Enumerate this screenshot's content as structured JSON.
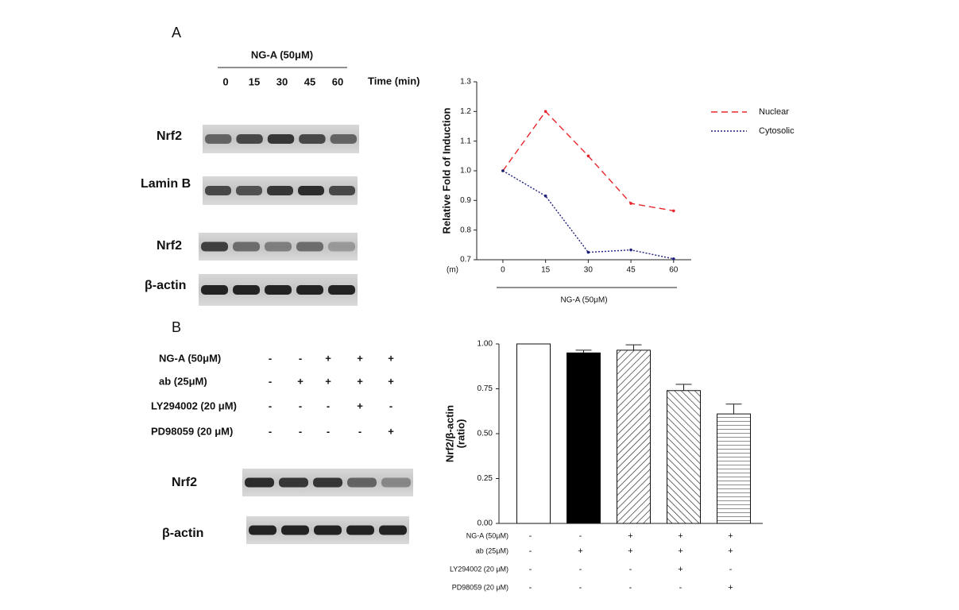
{
  "panel_a": {
    "label": "A",
    "treatment": "NG-A (50μM)",
    "time_points": [
      0,
      15,
      30,
      45,
      60
    ],
    "time_label": "Time (min)",
    "blot_labels": [
      "Nrf2",
      "Lamin B",
      "Nrf2",
      "β-actin"
    ]
  },
  "panel_b": {
    "label": "B",
    "conditions": [
      {
        "label": "NG-A (50μM)",
        "signs": [
          "-",
          "-",
          "+",
          "+",
          "+"
        ]
      },
      {
        "label": "ab (25μM)",
        "signs": [
          "-",
          "+",
          "+",
          "+",
          "+"
        ]
      },
      {
        "label": "LY294002 (20 μM)",
        "signs": [
          "-",
          "-",
          "-",
          "+",
          "-"
        ]
      },
      {
        "label": "PD98059 (20 μM)",
        "signs": [
          "-",
          "-",
          "-",
          "-",
          "+"
        ]
      }
    ],
    "blot_labels": [
      "Nrf2",
      "β-actin"
    ]
  },
  "chart_data": [
    {
      "type": "line",
      "y_label": "Relative Fold of Induction",
      "x_unit": "(m)",
      "x_caption": "NG-A (50μM)",
      "x": [
        0,
        15,
        30,
        45,
        60
      ],
      "xlim": [
        -9.2,
        66.2
      ],
      "xticks": [
        0,
        15,
        30,
        45,
        60
      ],
      "ylim": [
        0.7,
        1.3
      ],
      "yticks": [
        0.7,
        0.8,
        0.9,
        {
          "value": 1,
          "label": "1.0"
        },
        1.1,
        1.2,
        1.3
      ],
      "legend": "top-right",
      "series": [
        {
          "name": "Nuclear",
          "color": "#e8262b",
          "dash": "dashed",
          "values": [
            1.0,
            1.2,
            1.05,
            0.89,
            0.865
          ]
        },
        {
          "name": "Cytosolic",
          "color": "#1d1f7a",
          "dash": "dotted",
          "values": [
            1.0,
            0.915,
            0.725,
            0.733,
            0.703
          ]
        }
      ]
    },
    {
      "type": "bar",
      "y_label": [
        "Nrf2/β-actin",
        "(ratio)"
      ],
      "values": [
        1.0,
        0.95,
        0.965,
        0.74,
        0.61
      ],
      "errors": [
        0,
        0.015,
        0.03,
        0.035,
        0.055
      ],
      "fills": [
        "white",
        "black",
        "hatch-right",
        "hatch-left",
        "hatch-horizontal"
      ],
      "ylim": [
        0,
        1
      ],
      "yticks": [
        {
          "value": 0,
          "label": "0.00"
        },
        {
          "value": 0.25,
          "label": "0.25"
        },
        {
          "value": 0.5,
          "label": "0.50"
        },
        {
          "value": 0.75,
          "label": "0.75"
        },
        {
          "value": 1,
          "label": "1.00"
        }
      ],
      "conditions": [
        {
          "label": "NG-A (50μM)",
          "signs": [
            "-",
            "-",
            "+",
            "+",
            "+"
          ]
        },
        {
          "label": "ab (25μM)",
          "signs": [
            "-",
            "+",
            "+",
            "+",
            "+"
          ]
        },
        {
          "label": "LY294002 (20 μM)",
          "signs": [
            "-",
            "-",
            "-",
            "+",
            "-"
          ]
        },
        {
          "label": "PD98059 (20 μM)",
          "signs": [
            "-",
            "-",
            "-",
            "-",
            "+"
          ]
        }
      ]
    }
  ]
}
